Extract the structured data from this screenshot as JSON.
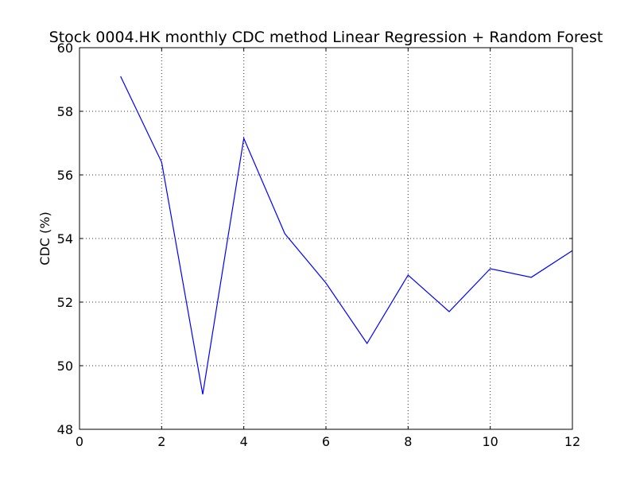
{
  "chart_data": {
    "type": "line",
    "title": "Stock 0004.HK monthly CDC method Linear Regression + Random Forest",
    "xlabel": "",
    "ylabel": "CDC (%)",
    "xlim": [
      0,
      12
    ],
    "ylim": [
      48,
      60
    ],
    "x_ticks": [
      "0",
      "2",
      "4",
      "6",
      "8",
      "10",
      "12"
    ],
    "y_ticks": [
      "48",
      "50",
      "52",
      "54",
      "56",
      "58",
      "60"
    ],
    "grid": true,
    "legend": "none",
    "series": [
      {
        "color": "#0000ff",
        "x": [
          1,
          2,
          3,
          4,
          5,
          6,
          7,
          8,
          9,
          10,
          11,
          12
        ],
        "values": [
          59.1,
          56.4,
          49.1,
          57.15,
          54.15,
          52.6,
          50.7,
          52.85,
          51.7,
          53.05,
          52.78,
          53.62
        ]
      }
    ]
  }
}
